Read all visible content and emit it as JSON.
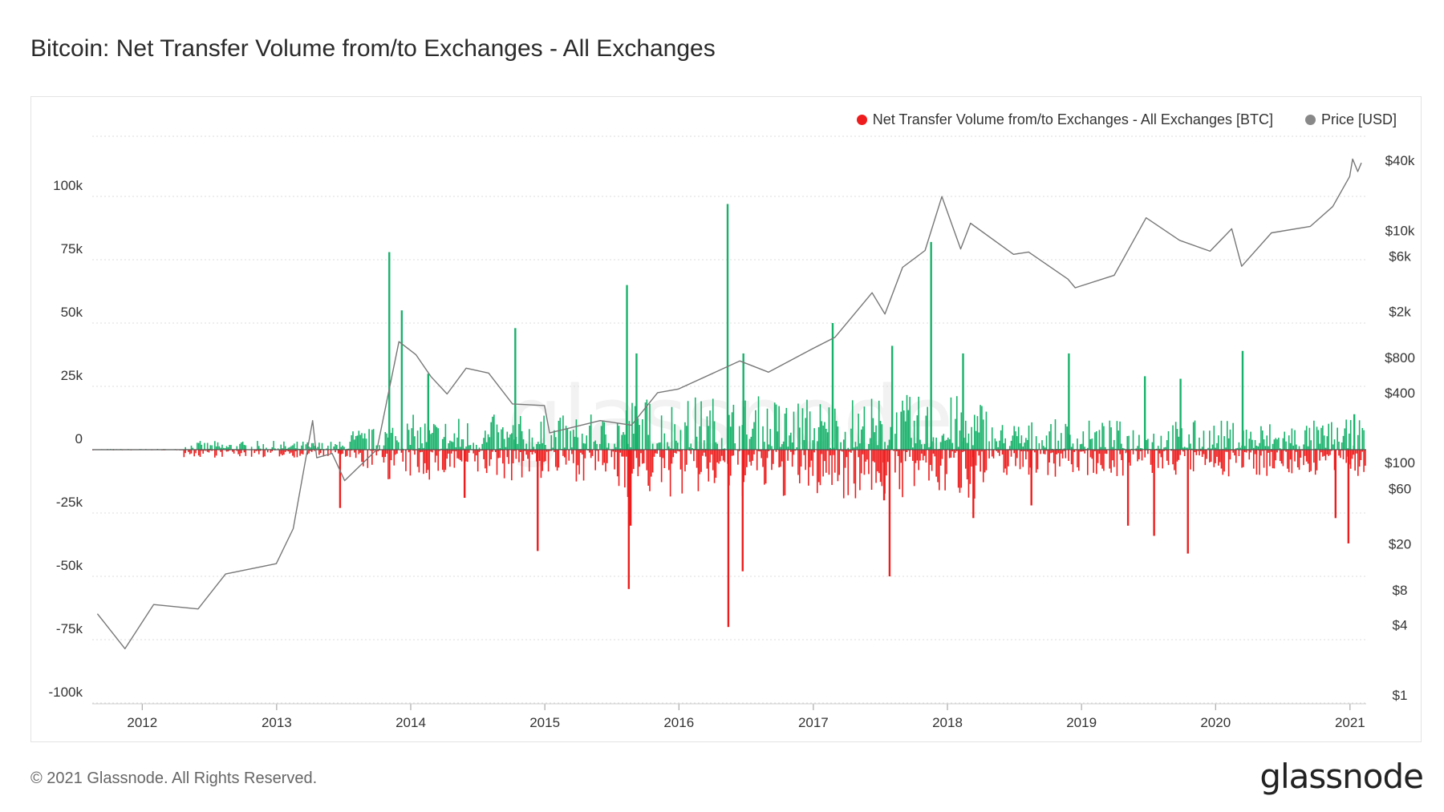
{
  "header": {
    "title": "Bitcoin: Net Transfer Volume from/to Exchanges - All Exchanges"
  },
  "footer": {
    "copyright": "© 2021 Glassnode. All Rights Reserved.",
    "brand": "glassnode"
  },
  "watermark": "glassnode",
  "colors": {
    "inflow": "#17b26a",
    "outflow": "#ee1c1c",
    "price": "#777777",
    "grid": "#dddddd"
  },
  "chart_data": {
    "type": "bar",
    "title": "Bitcoin: Net Transfer Volume from/to Exchanges - All Exchanges",
    "legend_position": "top-right",
    "grid": true,
    "series": [
      {
        "name": "Net Transfer Volume from/to Exchanges - All Exchanges [BTC]",
        "type": "bar",
        "axis": "left",
        "color_positive": "#17b26a",
        "color_negative": "#ee1c1c",
        "notable_points": [
          {
            "date": "2013-06-20",
            "value": -23000
          },
          {
            "date": "2013-11-01",
            "value": 78000
          },
          {
            "date": "2013-12-05",
            "value": 55000
          },
          {
            "date": "2014-02-15",
            "value": 30000
          },
          {
            "date": "2014-05-25",
            "value": -19000
          },
          {
            "date": "2014-10-10",
            "value": 48000
          },
          {
            "date": "2014-12-10",
            "value": -40000
          },
          {
            "date": "2015-08-10",
            "value": 65000
          },
          {
            "date": "2015-08-15",
            "value": -55000
          },
          {
            "date": "2015-08-20",
            "value": -30000
          },
          {
            "date": "2015-09-05",
            "value": 38000
          },
          {
            "date": "2016-05-10",
            "value": 97000
          },
          {
            "date": "2016-05-12",
            "value": -70000
          },
          {
            "date": "2016-06-20",
            "value": -48000
          },
          {
            "date": "2016-06-22",
            "value": 38000
          },
          {
            "date": "2017-02-20",
            "value": 50000
          },
          {
            "date": "2017-07-10",
            "value": -20000
          },
          {
            "date": "2017-07-25",
            "value": -50000
          },
          {
            "date": "2017-08-01",
            "value": 41000
          },
          {
            "date": "2017-11-15",
            "value": 82000
          },
          {
            "date": "2018-02-10",
            "value": 38000
          },
          {
            "date": "2018-03-10",
            "value": -27000
          },
          {
            "date": "2018-08-15",
            "value": -22000
          },
          {
            "date": "2018-11-25",
            "value": 38000
          },
          {
            "date": "2019-05-05",
            "value": -30000
          },
          {
            "date": "2019-06-20",
            "value": 29000
          },
          {
            "date": "2019-07-15",
            "value": -34000
          },
          {
            "date": "2019-09-25",
            "value": 28000
          },
          {
            "date": "2019-10-15",
            "value": -41000
          },
          {
            "date": "2020-03-12",
            "value": 39000
          },
          {
            "date": "2020-11-20",
            "value": -27000
          },
          {
            "date": "2020-12-25",
            "value": -37000
          },
          {
            "date": "2021-01-10",
            "value": 14000
          }
        ]
      },
      {
        "name": "Price [USD]",
        "type": "line",
        "axis": "right",
        "color": "#777777",
        "points": [
          {
            "date": "2011-09-01",
            "value": 5.0
          },
          {
            "date": "2011-11-15",
            "value": 2.5
          },
          {
            "date": "2011-12-15",
            "value": 3.5
          },
          {
            "date": "2012-02-01",
            "value": 6.0
          },
          {
            "date": "2012-06-01",
            "value": 5.5
          },
          {
            "date": "2012-08-15",
            "value": 11
          },
          {
            "date": "2012-12-31",
            "value": 13.5
          },
          {
            "date": "2013-02-15",
            "value": 27
          },
          {
            "date": "2013-04-09",
            "value": 230
          },
          {
            "date": "2013-04-20",
            "value": 110
          },
          {
            "date": "2013-06-01",
            "value": 120
          },
          {
            "date": "2013-07-05",
            "value": 70
          },
          {
            "date": "2013-10-01",
            "value": 130
          },
          {
            "date": "2013-11-30",
            "value": 1100
          },
          {
            "date": "2014-01-15",
            "value": 850
          },
          {
            "date": "2014-02-25",
            "value": 550
          },
          {
            "date": "2014-04-10",
            "value": 390
          },
          {
            "date": "2014-06-01",
            "value": 650
          },
          {
            "date": "2014-08-01",
            "value": 590
          },
          {
            "date": "2014-10-05",
            "value": 320
          },
          {
            "date": "2014-12-31",
            "value": 310
          },
          {
            "date": "2015-01-14",
            "value": 180
          },
          {
            "date": "2015-06-01",
            "value": 230
          },
          {
            "date": "2015-08-25",
            "value": 210
          },
          {
            "date": "2015-11-04",
            "value": 400
          },
          {
            "date": "2015-12-31",
            "value": 430
          },
          {
            "date": "2016-06-15",
            "value": 750
          },
          {
            "date": "2016-09-01",
            "value": 600
          },
          {
            "date": "2016-12-31",
            "value": 960
          },
          {
            "date": "2017-03-01",
            "value": 1200
          },
          {
            "date": "2017-06-10",
            "value": 2900
          },
          {
            "date": "2017-07-15",
            "value": 1900
          },
          {
            "date": "2017-09-01",
            "value": 4800
          },
          {
            "date": "2017-11-01",
            "value": 6700
          },
          {
            "date": "2017-12-17",
            "value": 19500
          },
          {
            "date": "2018-02-06",
            "value": 6900
          },
          {
            "date": "2018-03-05",
            "value": 11500
          },
          {
            "date": "2018-06-30",
            "value": 6200
          },
          {
            "date": "2018-08-10",
            "value": 6500
          },
          {
            "date": "2018-11-25",
            "value": 3800
          },
          {
            "date": "2018-12-15",
            "value": 3200
          },
          {
            "date": "2019-03-31",
            "value": 4100
          },
          {
            "date": "2019-06-26",
            "value": 12800
          },
          {
            "date": "2019-09-25",
            "value": 8200
          },
          {
            "date": "2019-12-17",
            "value": 6600
          },
          {
            "date": "2020-02-14",
            "value": 10300
          },
          {
            "date": "2020-03-12",
            "value": 4900
          },
          {
            "date": "2020-06-01",
            "value": 9500
          },
          {
            "date": "2020-09-15",
            "value": 10800
          },
          {
            "date": "2020-11-15",
            "value": 16000
          },
          {
            "date": "2020-12-31",
            "value": 29000
          },
          {
            "date": "2021-01-08",
            "value": 41000
          },
          {
            "date": "2021-01-22",
            "value": 32000
          },
          {
            "date": "2021-02-01",
            "value": 38000
          }
        ]
      }
    ],
    "x_axis": {
      "type": "date",
      "range": [
        "2011-08-18",
        "2021-02-14"
      ],
      "ticks": [
        "2012",
        "2013",
        "2014",
        "2015",
        "2016",
        "2017",
        "2018",
        "2019",
        "2020",
        "2021"
      ],
      "tick_values": [
        "2012-01-01",
        "2013-01-01",
        "2014-01-01",
        "2015-01-01",
        "2016-01-01",
        "2017-01-01",
        "2018-01-01",
        "2019-01-01",
        "2020-01-01",
        "2021-01-01"
      ]
    },
    "y_axis_left": {
      "range": [
        -100000,
        100000
      ],
      "ticks": [
        "100k",
        "75k",
        "50k",
        "25k",
        "0",
        "-25k",
        "-50k",
        "-75k",
        "-100k"
      ],
      "tick_values": [
        100000,
        75000,
        50000,
        25000,
        0,
        -25000,
        -50000,
        -75000,
        -100000
      ]
    },
    "y_axis_right": {
      "scale": "log",
      "range": [
        1,
        40000
      ],
      "ticks": [
        "$40k",
        "$10k",
        "$6k",
        "$2k",
        "$800",
        "$400",
        "$100",
        "$60",
        "$20",
        "$8",
        "$4",
        "$1"
      ],
      "tick_values": [
        40000,
        10000,
        6000,
        2000,
        800,
        400,
        100,
        60,
        20,
        8,
        4,
        1
      ]
    }
  }
}
